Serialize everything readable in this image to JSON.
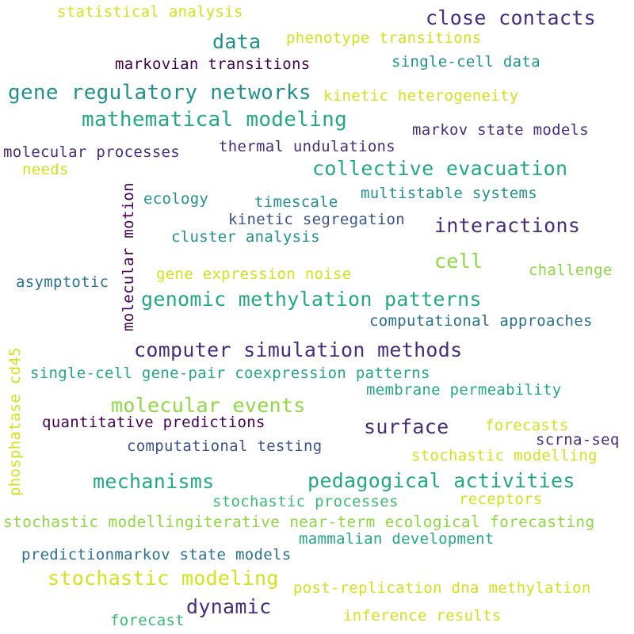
{
  "colors": {
    "yellow": "#d2e21b",
    "lime": "#8fd744",
    "green": "#3bbb75",
    "teal": "#23a884",
    "cyan": "#21918c",
    "blue": "#2c718e",
    "slate": "#3b528b",
    "indigo": "#472d7b",
    "purple": "#440154"
  },
  "words": [
    {
      "text": "statistical analysis",
      "color": "yellow"
    },
    {
      "text": "close contacts",
      "color": "indigo"
    },
    {
      "text": "data",
      "color": "cyan"
    },
    {
      "text": "phenotype transitions",
      "color": "yellow"
    },
    {
      "text": "markovian transitions",
      "color": "purple"
    },
    {
      "text": "single-cell data",
      "color": "cyan"
    },
    {
      "text": "gene regulatory networks",
      "color": "cyan"
    },
    {
      "text": "kinetic heterogeneity",
      "color": "yellow"
    },
    {
      "text": "mathematical modeling",
      "color": "teal"
    },
    {
      "text": "markov state models",
      "color": "indigo"
    },
    {
      "text": "molecular processes",
      "color": "indigo"
    },
    {
      "text": "thermal undulations",
      "color": "indigo"
    },
    {
      "text": "needs",
      "color": "yellow"
    },
    {
      "text": "collective evacuation",
      "color": "teal"
    },
    {
      "text": "molecular motion",
      "color": "purple"
    },
    {
      "text": "ecology",
      "color": "cyan"
    },
    {
      "text": "timescale",
      "color": "cyan"
    },
    {
      "text": "multistable systems",
      "color": "cyan"
    },
    {
      "text": "kinetic segregation",
      "color": "slate"
    },
    {
      "text": "interactions",
      "color": "indigo"
    },
    {
      "text": "cluster analysis",
      "color": "cyan"
    },
    {
      "text": "cell",
      "color": "lime"
    },
    {
      "text": "gene expression noise",
      "color": "yellow"
    },
    {
      "text": "challenge",
      "color": "lime"
    },
    {
      "text": "asymptotic",
      "color": "blue"
    },
    {
      "text": "genomic methylation patterns",
      "color": "teal"
    },
    {
      "text": "computational approaches",
      "color": "blue"
    },
    {
      "text": "computer simulation methods",
      "color": "indigo"
    },
    {
      "text": "phosphatase cd45",
      "color": "yellow"
    },
    {
      "text": "single-cell gene-pair coexpression patterns",
      "color": "teal"
    },
    {
      "text": "membrane permeability",
      "color": "teal"
    },
    {
      "text": "molecular events",
      "color": "lime"
    },
    {
      "text": "quantitative predictions",
      "color": "purple"
    },
    {
      "text": "surface",
      "color": "indigo"
    },
    {
      "text": "forecasts",
      "color": "yellow"
    },
    {
      "text": "scrna-seq",
      "color": "indigo"
    },
    {
      "text": "computational testing",
      "color": "slate"
    },
    {
      "text": "stochastic modelling",
      "color": "yellow"
    },
    {
      "text": "mechanisms",
      "color": "teal"
    },
    {
      "text": "pedagogical activities",
      "color": "teal"
    },
    {
      "text": "stochastic processes",
      "color": "green"
    },
    {
      "text": "receptors",
      "color": "yellow"
    },
    {
      "text": "stochastic modellingiterative near-term ecological forecasting",
      "color": "lime"
    },
    {
      "text": "mammalian development",
      "color": "teal"
    },
    {
      "text": "predictionmarkov state models",
      "color": "blue"
    },
    {
      "text": "stochastic modeling",
      "color": "yellow"
    },
    {
      "text": "post-replication dna methylation",
      "color": "yellow"
    },
    {
      "text": "dynamic",
      "color": "indigo"
    },
    {
      "text": "inference results",
      "color": "yellow"
    },
    {
      "text": "forecast",
      "color": "green"
    }
  ]
}
